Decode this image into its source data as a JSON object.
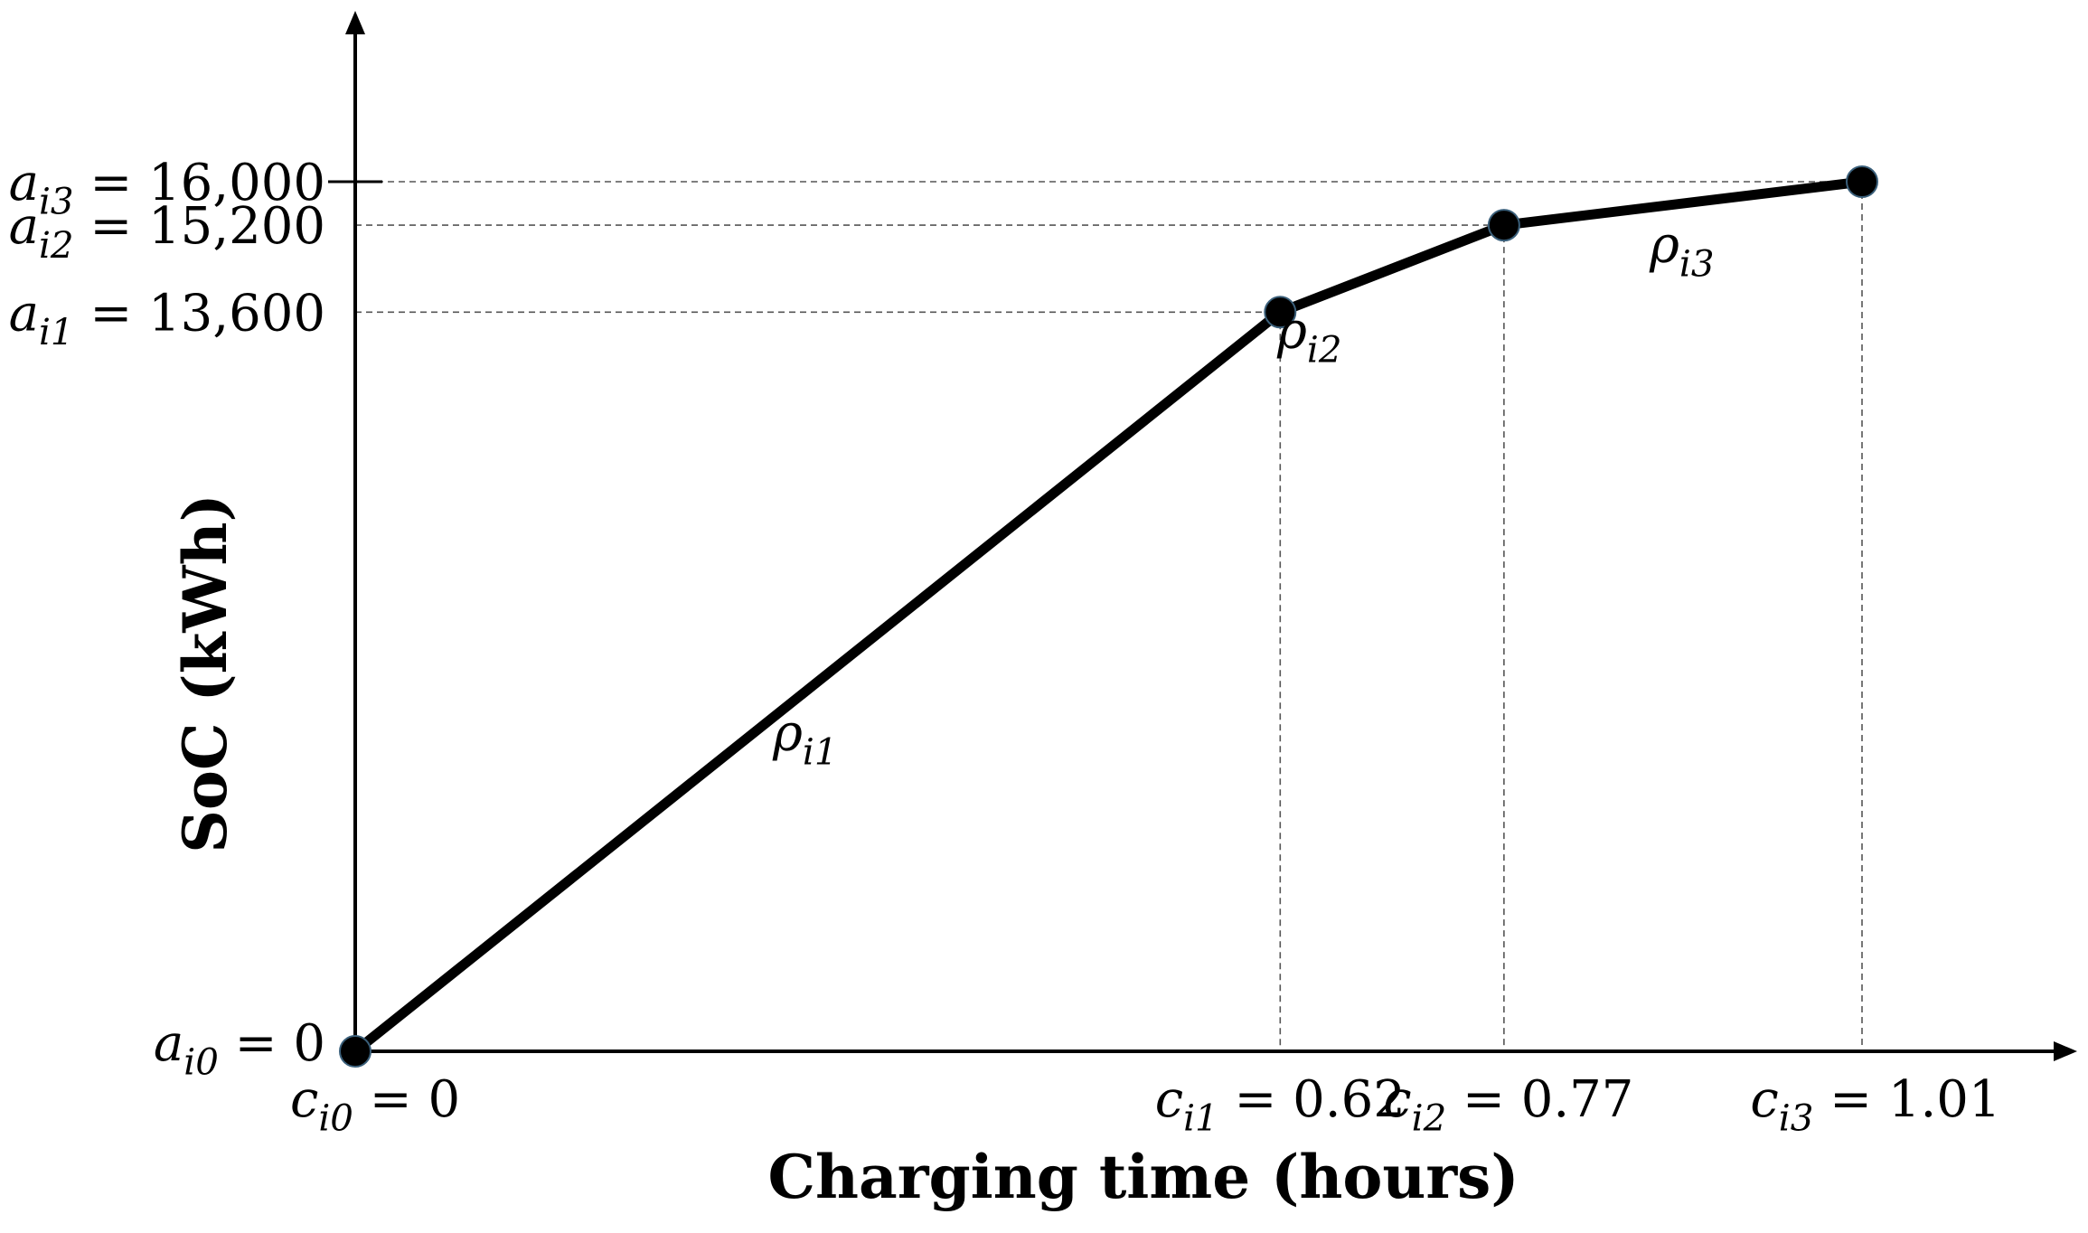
{
  "chart_data": {
    "type": "line",
    "xlabel": "Charging time (hours)",
    "ylabel": "SoC (kWh)",
    "xlim": [
      0,
      1.18
    ],
    "ylim": [
      0,
      17800
    ],
    "grid": false,
    "series": [
      {
        "points": [
          {
            "x": 0,
            "y": 0
          },
          {
            "x": 0.62,
            "y": 13600
          },
          {
            "x": 0.77,
            "y": 15200
          },
          {
            "x": 1.01,
            "y": 16000
          }
        ]
      }
    ],
    "x_ticks": [
      {
        "value": 0,
        "sym": "c",
        "sub": "i0",
        "eq": " = 0"
      },
      {
        "value": 0.62,
        "sym": "c",
        "sub": "i1",
        "eq": " = 0.62"
      },
      {
        "value": 0.77,
        "sym": "c",
        "sub": "i2",
        "eq": " = 0.77"
      },
      {
        "value": 1.01,
        "sym": "c",
        "sub": "i3",
        "eq": " = 1.01"
      }
    ],
    "y_ticks": [
      {
        "value": 0,
        "sym": "a",
        "sub": "i0",
        "eq": " = 0"
      },
      {
        "value": 13600,
        "sym": "a",
        "sub": "i1",
        "eq": " = 13,600"
      },
      {
        "value": 15200,
        "sym": "a",
        "sub": "i2",
        "eq": " = 15,200"
      },
      {
        "value": 16000,
        "sym": "a",
        "sub": "i3",
        "eq": " = 16,000"
      }
    ],
    "segment_labels": [
      {
        "sym": "ρ",
        "sub": "i1"
      },
      {
        "sym": "ρ",
        "sub": "i2"
      },
      {
        "sym": "ρ",
        "sub": "i3"
      }
    ]
  }
}
